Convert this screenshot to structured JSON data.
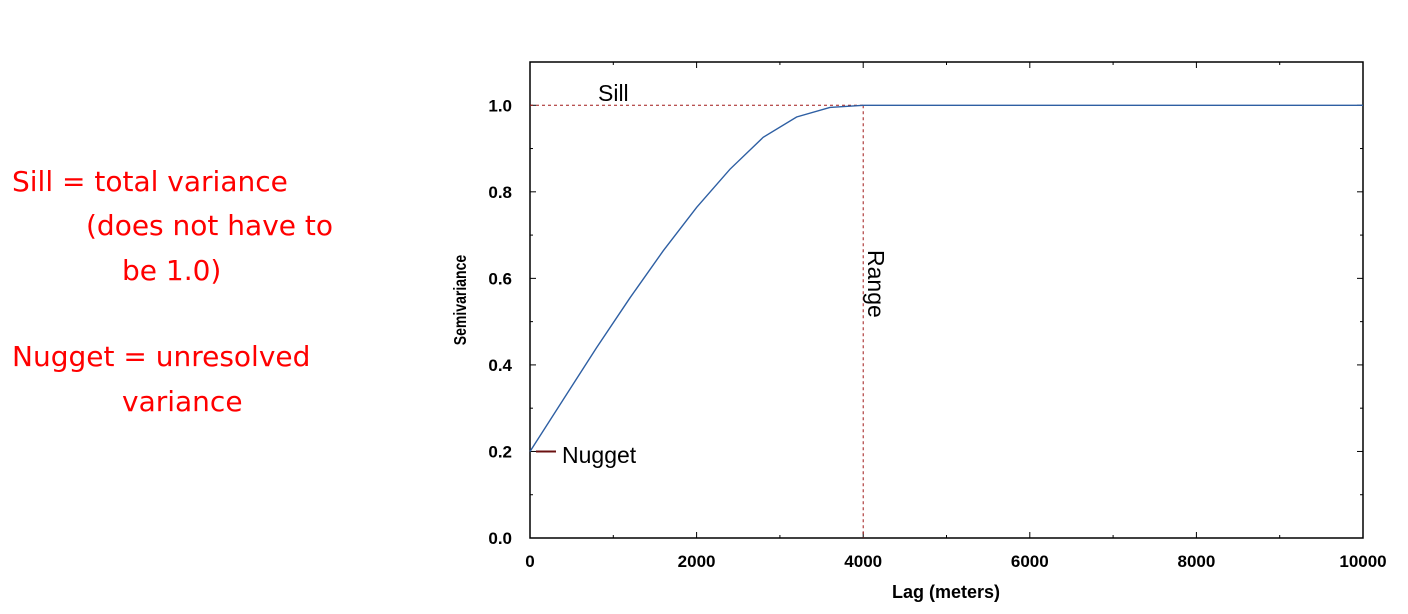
{
  "notes": {
    "sill_line1": "Sill = total variance",
    "sill_line2": "(does not have to",
    "sill_line3": "be 1.0)",
    "nugget_line1": "Nugget = unresolved",
    "nugget_line2": "variance",
    "color": "#ff0000"
  },
  "chart_data": {
    "type": "line",
    "title": "",
    "xlabel": "Lag (meters)",
    "ylabel": "Semivariance",
    "xlim": [
      0,
      10000
    ],
    "ylim": [
      0,
      1.1
    ],
    "xticks": [
      0,
      2000,
      4000,
      6000,
      8000,
      10000
    ],
    "xtick_labels": [
      "0",
      "2000",
      "4000",
      "6000",
      "8000",
      "10000"
    ],
    "yticks": [
      0.0,
      0.2,
      0.4,
      0.6,
      0.8,
      1.0
    ],
    "ytick_labels": [
      "0.0",
      "0.2",
      "0.4",
      "0.6",
      "0.8",
      "1.0"
    ],
    "grid": false,
    "model": "spherical",
    "nugget": 0.2,
    "sill": 1.0,
    "range": 4000,
    "series": [
      {
        "color": "#2e5fa3",
        "x": [
          0,
          400,
          800,
          1200,
          1600,
          2000,
          2400,
          2800,
          3200,
          3600,
          4000,
          5000,
          6000,
          7000,
          8000,
          9000,
          10000
        ],
        "y": [
          0.2,
          0.32,
          0.44,
          0.555,
          0.664,
          0.764,
          0.852,
          0.926,
          0.973,
          0.995,
          1.0,
          1.0,
          1.0,
          1.0,
          1.0,
          1.0,
          1.0
        ]
      }
    ],
    "annotations": {
      "sill_label": "Sill",
      "range_label": "Range",
      "nugget_label": "Nugget",
      "reference_line_color": "#a01818"
    }
  }
}
